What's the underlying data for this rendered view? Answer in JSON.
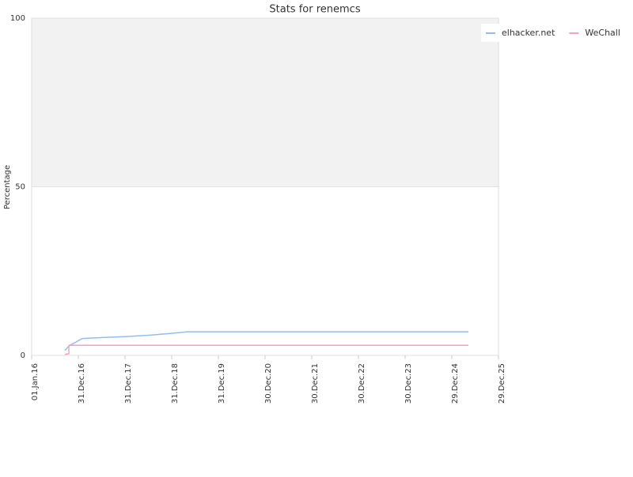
{
  "chart_data": {
    "type": "line",
    "title": "Stats for renemcs",
    "y_label": "Percentage",
    "xlim": [
      "2016-01-01",
      "2025-12-29"
    ],
    "xticks": [
      {
        "value": "2016-01-01",
        "label": "01.Jan.16"
      },
      {
        "value": "2016-12-31",
        "label": "31.Dec.16"
      },
      {
        "value": "2017-12-31",
        "label": "31.Dec.17"
      },
      {
        "value": "2018-12-31",
        "label": "31.Dec.18"
      },
      {
        "value": "2019-12-31",
        "label": "31.Dec.19"
      },
      {
        "value": "2020-12-30",
        "label": "30.Dec.20"
      },
      {
        "value": "2021-12-30",
        "label": "30.Dec.21"
      },
      {
        "value": "2022-12-30",
        "label": "30.Dec.22"
      },
      {
        "value": "2023-12-30",
        "label": "30.Dec.23"
      },
      {
        "value": "2024-12-29",
        "label": "29.Dec.24"
      },
      {
        "value": "2025-12-29",
        "label": "29.Dec.25"
      }
    ],
    "ylim": [
      0,
      100
    ],
    "yticks": [
      0,
      50,
      100
    ],
    "grid": true,
    "legend": "top-right",
    "series": [
      {
        "name": "elhacker.net",
        "color": "#90bfee",
        "x": [
          "2016-09-17",
          "2016-10-24",
          "2016-12-06",
          "2017-01-31",
          "2017-07-11",
          "2018-01-12",
          "2018-07-17",
          "2018-12-19",
          "2019-05-04",
          "2025-05-08"
        ],
        "values": [
          1.5,
          3,
          3.8,
          5,
          5.3,
          5.6,
          6,
          6.5,
          7,
          7
        ]
      },
      {
        "name": "WeChall",
        "color": "#f3a3bd",
        "x": [
          "2016-09-17",
          "2016-10-18",
          "2016-10-18",
          "2025-05-08"
        ],
        "values": [
          0.3,
          0.5,
          3,
          3
        ]
      }
    ]
  }
}
